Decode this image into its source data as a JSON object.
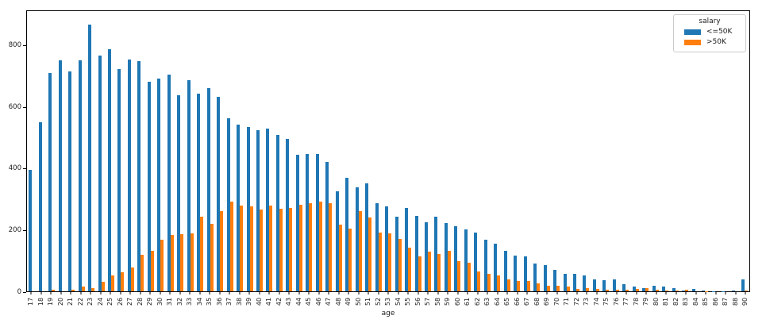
{
  "figure": {
    "background": "#ffffff",
    "text_color": "#1a1a1a",
    "spine_color": "#000000"
  },
  "chart_data": {
    "type": "bar",
    "title": "",
    "xlabel": "age",
    "ylabel": "",
    "grid": false,
    "legend": {
      "title": "salary",
      "position": "upper right"
    },
    "ylim": [
      0,
      913
    ],
    "yticks": [
      0,
      200,
      400,
      600,
      800
    ],
    "x": [
      "17",
      "18",
      "19",
      "20",
      "21",
      "22",
      "23",
      "24",
      "25",
      "26",
      "27",
      "28",
      "29",
      "30",
      "31",
      "32",
      "33",
      "34",
      "35",
      "36",
      "37",
      "38",
      "39",
      "40",
      "41",
      "42",
      "43",
      "44",
      "45",
      "46",
      "47",
      "48",
      "49",
      "50",
      "51",
      "52",
      "53",
      "54",
      "55",
      "56",
      "57",
      "58",
      "59",
      "60",
      "61",
      "62",
      "63",
      "64",
      "65",
      "66",
      "67",
      "68",
      "69",
      "70",
      "71",
      "72",
      "73",
      "74",
      "75",
      "76",
      "77",
      "78",
      "79",
      "80",
      "81",
      "82",
      "83",
      "84",
      "85",
      "86",
      "87",
      "88",
      "90"
    ],
    "series": [
      {
        "name": "<=50K",
        "color": "#1f77b4",
        "values": [
          395,
          550,
          712,
          753,
          717,
          753,
          868,
          767,
          790,
          724,
          756,
          750,
          683,
          693,
          706,
          639,
          687,
          645,
          661,
          635,
          565,
          543,
          535,
          525,
          529,
          510,
          497,
          444,
          447,
          447,
          422,
          326,
          369,
          340,
          352,
          288,
          276,
          242,
          271,
          246,
          224,
          243,
          222,
          211,
          202,
          191,
          167,
          154,
          133,
          116,
          115,
          90,
          86,
          69,
          56,
          58,
          51,
          39,
          36,
          40,
          23,
          15,
          11,
          19,
          15,
          10,
          3,
          8,
          3,
          1,
          1,
          2,
          39
        ]
      },
      {
        "name": ">50K",
        "color": "#ff7f0e",
        "values": [
          0,
          0,
          4,
          0,
          5,
          15,
          11,
          30,
          51,
          61,
          78,
          118,
          133,
          168,
          183,
          186,
          190,
          242,
          219,
          262,
          292,
          280,
          277,
          267,
          279,
          270,
          272,
          281,
          287,
          293,
          286,
          217,
          204,
          261,
          241,
          191,
          189,
          172,
          143,
          114,
          129,
          122,
          133,
          99,
          92,
          65,
          56,
          51,
          40,
          34,
          34,
          26,
          19,
          19,
          15,
          7,
          10,
          9,
          5,
          5,
          4,
          8,
          10,
          4,
          3,
          2,
          4,
          0,
          1,
          0,
          0,
          0,
          3
        ]
      }
    ]
  }
}
